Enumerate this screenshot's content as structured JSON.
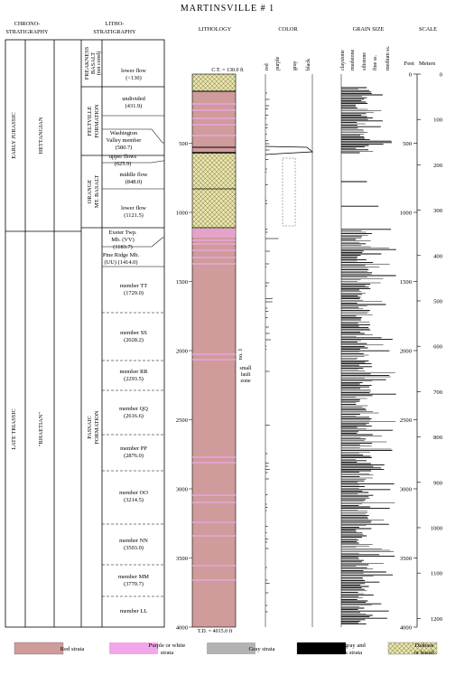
{
  "title": "MARTINSVILLE # 1",
  "headers": {
    "chrono": [
      "CHRONO-",
      "STRATIGRAPHY"
    ],
    "litho": [
      "LITHO-",
      "STRATIGRAPHY"
    ],
    "lithology": "LITHOLOGY",
    "color": "COLOR",
    "grain_size": "GRAIN SIZE",
    "scale": "SCALE"
  },
  "chrono": {
    "periods": [
      "EARLY JURASSIC",
      "LATE TRIASSIC"
    ],
    "stages": [
      "HETTANGIAN",
      "\"RHAETIAN\""
    ]
  },
  "formations": [
    "FREAKNESS BASALT (not cored)",
    "FELTVILLE FORMATION",
    "ORANGE MT. BASALT",
    "PASSAIC FORMATION"
  ],
  "members": [
    {
      "lines": [
        "lower flow",
        "(<130)"
      ]
    },
    {
      "lines": [
        "undivided",
        "(431.9)"
      ]
    },
    {
      "lines": [
        "Washington",
        "Valley member",
        "(580.7)"
      ]
    },
    {
      "lines": [
        "upper flows",
        "(625.9)"
      ]
    },
    {
      "lines": [
        "middle flow",
        "(848.0)"
      ]
    },
    {
      "lines": [
        "lower flow",
        "(1121.5)"
      ]
    },
    {
      "lines": [
        "Exeter Twp.",
        "Mb. (VV)",
        "(1183.7)"
      ]
    },
    {
      "lines": [
        "Pine Ridge Mb.",
        "(UU) (1414.0)"
      ]
    },
    {
      "lines": [
        "member TT",
        "(1729.0)"
      ]
    },
    {
      "lines": [
        "member SS",
        "(2028.2)"
      ]
    },
    {
      "lines": [
        "member RR",
        "(2293.5)"
      ]
    },
    {
      "lines": [
        "member QQ",
        "(2616.6)"
      ]
    },
    {
      "lines": [
        "member PP",
        "(2876.0)"
      ]
    },
    {
      "lines": [
        "member OO",
        "(3214.5)"
      ]
    },
    {
      "lines": [
        "member NN",
        "(3503.0)"
      ]
    },
    {
      "lines": [
        "member MM",
        "(3770.7)"
      ]
    },
    {
      "lines": [
        "member LL"
      ]
    }
  ],
  "lithology": {
    "ct": "C.T. = 130.0 ft",
    "td": "T.D. = 4015.0 ft",
    "fault_label": "no. 1",
    "fault_zone": [
      "small",
      "fault",
      "zone"
    ],
    "depth_ticks": [
      "500",
      "1000",
      "1500",
      "2000",
      "2500",
      "3000",
      "3500",
      "4000"
    ]
  },
  "color_cols": [
    "red",
    "purple",
    "gray",
    "black"
  ],
  "grain_cols": [
    "claystone",
    "mudstone",
    "siltstone",
    "fine ss.",
    "medium ss."
  ],
  "scale": {
    "feet_label": "Feet",
    "meters_label": "Meters",
    "feet_ticks": [
      "0",
      "500",
      "1000",
      "1500",
      "2000",
      "2500",
      "3000",
      "3500",
      "4000"
    ],
    "meter_ticks": [
      "0",
      "100",
      "200",
      "300",
      "400",
      "500",
      "600",
      "700",
      "800",
      "900",
      "1000",
      "1100",
      "1200"
    ]
  },
  "legend": [
    {
      "lines": [
        "Red strata"
      ],
      "color": "#cf9b9b"
    },
    {
      "lines": [
        "Purple or white",
        "strata"
      ],
      "color": "#f1a7e9"
    },
    {
      "lines": [
        "Gray strata"
      ],
      "color": "#b3b3b3"
    },
    {
      "lines": [
        "Dark gray and",
        "black strata"
      ],
      "color": "#000000"
    },
    {
      "lines": [
        "Diabase",
        "or basalt"
      ],
      "color": "#e8e3a8"
    }
  ]
}
